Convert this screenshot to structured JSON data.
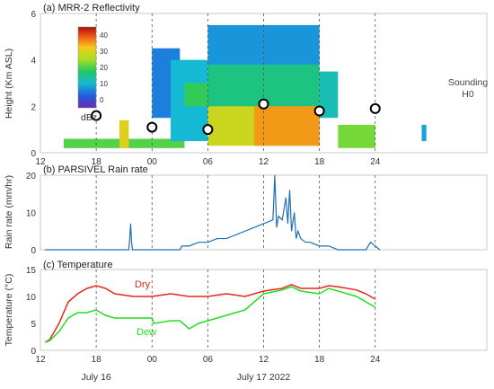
{
  "chart_data": [
    {
      "type": "heatmap",
      "title": "(a) MRR-2 Reflectivity",
      "ylabel": "Height (Km ASL)",
      "xlim": [
        12,
        60
      ],
      "ylim": [
        0,
        6
      ],
      "x_ticks": [
        12,
        18,
        24,
        30,
        36,
        42,
        48
      ],
      "x_tick_labels": [
        "12",
        "18",
        "00",
        "06",
        "12",
        "18",
        "24"
      ],
      "y_ticks": [
        0,
        2,
        4,
        6
      ],
      "y_tick_labels": [
        "0",
        "2",
        "4",
        "6"
      ],
      "colorbar": {
        "label": "dBz",
        "min": -5,
        "max": 45,
        "ticks": [
          0,
          10,
          20,
          30,
          40
        ],
        "tick_labels": [
          "0",
          "10",
          "20",
          "30",
          "40"
        ]
      },
      "regions": [
        {
          "x0": 14.5,
          "x1": 27.5,
          "y0": 0.2,
          "y1": 0.6,
          "dbz": 20
        },
        {
          "x0": 20.5,
          "x1": 21.5,
          "y0": 0.2,
          "y1": 1.4,
          "dbz": 30
        },
        {
          "x0": 24.0,
          "x1": 27.0,
          "y0": 1.5,
          "y1": 4.5,
          "dbz": 5
        },
        {
          "x0": 26.0,
          "x1": 30.0,
          "y0": 0.5,
          "y1": 4.0,
          "dbz": 10
        },
        {
          "x0": 27.5,
          "x1": 30.0,
          "y0": 2.0,
          "y1": 3.0,
          "dbz": 18
        },
        {
          "x0": 30.0,
          "x1": 42.0,
          "y0": 1.0,
          "y1": 4.2,
          "dbz": 15
        },
        {
          "x0": 30.0,
          "x1": 42.0,
          "y0": 3.8,
          "y1": 5.5,
          "dbz": 7
        },
        {
          "x0": 30.0,
          "x1": 42.0,
          "y0": 0.3,
          "y1": 2.0,
          "dbz": 28
        },
        {
          "x0": 35.0,
          "x1": 42.0,
          "y0": 0.3,
          "y1": 2.0,
          "dbz": 35
        },
        {
          "x0": 42.0,
          "x1": 44.0,
          "y0": 1.5,
          "y1": 3.5,
          "dbz": 12
        },
        {
          "x0": 44.0,
          "x1": 48.0,
          "y0": 0.2,
          "y1": 1.2,
          "dbz": 22
        },
        {
          "x0": 53.0,
          "x1": 53.5,
          "y0": 0.5,
          "y1": 1.2,
          "dbz": 8
        }
      ],
      "soundings": [
        {
          "x": 18,
          "height": 1.6
        },
        {
          "x": 24,
          "height": 1.1
        },
        {
          "x": 30,
          "height": 1.0
        },
        {
          "x": 36,
          "height": 2.1
        },
        {
          "x": 42,
          "height": 1.8
        },
        {
          "x": 48,
          "height": 1.9
        }
      ],
      "annotation": {
        "line1": "Sounding",
        "line2": "H0"
      }
    },
    {
      "type": "line",
      "title": "(b) PARSIVEL Rain rate",
      "ylabel": "Rain rate (mm/hr)",
      "xlim": [
        12,
        60
      ],
      "ylim": [
        0,
        20
      ],
      "x_ticks": [
        12,
        18,
        24,
        30,
        36,
        42,
        48
      ],
      "y_ticks": [
        0,
        10,
        20
      ],
      "y_tick_labels": [
        "0",
        "10",
        "20"
      ],
      "color": "#1f6fb4",
      "series": [
        {
          "x": [
            12.5,
            21.5,
            21.6,
            21.7,
            21.8,
            21.9,
            22.0,
            27.0,
            27.2,
            28.0,
            29.0,
            30.0,
            31.0,
            32.0,
            33.0,
            34.0,
            35.0,
            36.0,
            37.0,
            37.2,
            37.4,
            37.6,
            38.0,
            38.4,
            38.6,
            38.8,
            39.0,
            39.3,
            39.5,
            39.7,
            40.0,
            40.5,
            41.0,
            42.0,
            43.0,
            44.0,
            47.0,
            47.5,
            48.5
          ],
          "y": [
            0,
            0,
            3,
            7,
            2,
            0,
            0,
            0,
            1,
            1,
            2,
            2,
            3,
            3,
            4,
            5,
            6,
            7,
            8,
            20,
            6,
            9,
            8,
            14,
            7,
            16,
            5,
            10,
            3,
            5,
            3,
            2,
            2,
            1,
            1,
            0,
            0,
            2,
            0
          ]
        }
      ]
    },
    {
      "type": "line",
      "title": "(c) Temperature",
      "ylabel": "Temperature (°C)",
      "xlim": [
        12,
        60
      ],
      "ylim": [
        0,
        15
      ],
      "x_ticks": [
        12,
        18,
        24,
        30,
        36,
        42,
        48
      ],
      "x_tick_labels": [
        "12",
        "18",
        "00",
        "06",
        "12",
        "18",
        "24"
      ],
      "y_ticks": [
        0,
        5,
        10,
        15
      ],
      "y_tick_labels": [
        "0",
        "5",
        "10",
        "15"
      ],
      "dates": [
        {
          "x": 18,
          "label": "July 16"
        },
        {
          "x": 36,
          "label": "July 17 2022"
        }
      ],
      "series": [
        {
          "name": "Dry",
          "color": "#e8261f",
          "x": [
            12.5,
            13.0,
            14.0,
            15.0,
            16.0,
            17.0,
            18.0,
            19.0,
            20.0,
            22.0,
            24.0,
            26.0,
            28.0,
            30.0,
            32.0,
            34.0,
            36.0,
            38.0,
            39.0,
            40.0,
            42.0,
            43.0,
            44.0,
            46.0,
            47.0,
            48.0
          ],
          "y": [
            1.5,
            2.0,
            5.0,
            9.0,
            10.5,
            11.5,
            12.0,
            11.5,
            10.5,
            10.0,
            10.0,
            10.5,
            10.0,
            10.0,
            10.5,
            10.0,
            11.0,
            11.5,
            12.2,
            11.5,
            11.5,
            12.0,
            11.8,
            11.2,
            10.5,
            9.5
          ]
        },
        {
          "name": "Dew",
          "color": "#22dd22",
          "x": [
            12.5,
            13.0,
            14.0,
            15.0,
            16.0,
            17.0,
            18.0,
            19.0,
            20.0,
            22.0,
            24.0,
            24.2,
            26.0,
            27.0,
            28.0,
            29.0,
            30.0,
            32.0,
            34.0,
            36.0,
            38.0,
            39.0,
            40.0,
            42.0,
            43.0,
            44.0,
            46.0,
            47.0,
            48.0
          ],
          "y": [
            1.5,
            1.8,
            3.5,
            6.0,
            7.0,
            7.0,
            7.5,
            6.5,
            6.0,
            6.0,
            6.0,
            5.0,
            5.5,
            5.5,
            4.0,
            5.0,
            5.5,
            6.5,
            7.5,
            10.5,
            11.2,
            11.8,
            11.0,
            10.5,
            11.5,
            11.0,
            10.0,
            9.0,
            8.0
          ]
        }
      ]
    }
  ]
}
